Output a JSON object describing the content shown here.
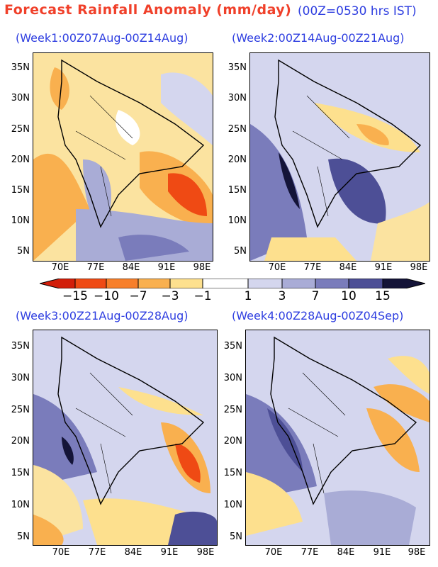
{
  "header": {
    "title": "Forecast Rainfall Anomaly (mm/day)",
    "time_note": "(00Z=0530 hrs IST)"
  },
  "panels": [
    {
      "label": "(Week1:00Z07Aug-00Z14Aug)"
    },
    {
      "label": "(Week2:00Z14Aug-00Z21Aug)"
    },
    {
      "label": "(Week3:00Z21Aug-00Z28Aug)"
    },
    {
      "label": "(Week4:00Z28Aug-00Z04Sep)"
    }
  ],
  "axes": {
    "lat_ticks": [
      "35N",
      "30N",
      "25N",
      "20N",
      "15N",
      "10N",
      "5N"
    ],
    "lon_ticks": [
      "70E",
      "77E",
      "84E",
      "91E",
      "98E"
    ]
  },
  "colorbar": {
    "labels": [
      "−15",
      "−10",
      "−7",
      "−3",
      "−1",
      "1",
      "3",
      "7",
      "10",
      "15"
    ],
    "colors": {
      "lt_neg15": "#d21e0a",
      "neg15_neg10": "#ef4a14",
      "neg10_neg7": "#f77f2a",
      "neg7_neg3": "#f9b04f",
      "neg3_neg1": "#fde08e",
      "neg1_1": "#ffffff",
      "1_3": "#d4d6ee",
      "3_7": "#a9acd6",
      "7_10": "#7a7cbb",
      "10_15": "#4d4f96",
      "gt_15": "#141438"
    }
  }
}
